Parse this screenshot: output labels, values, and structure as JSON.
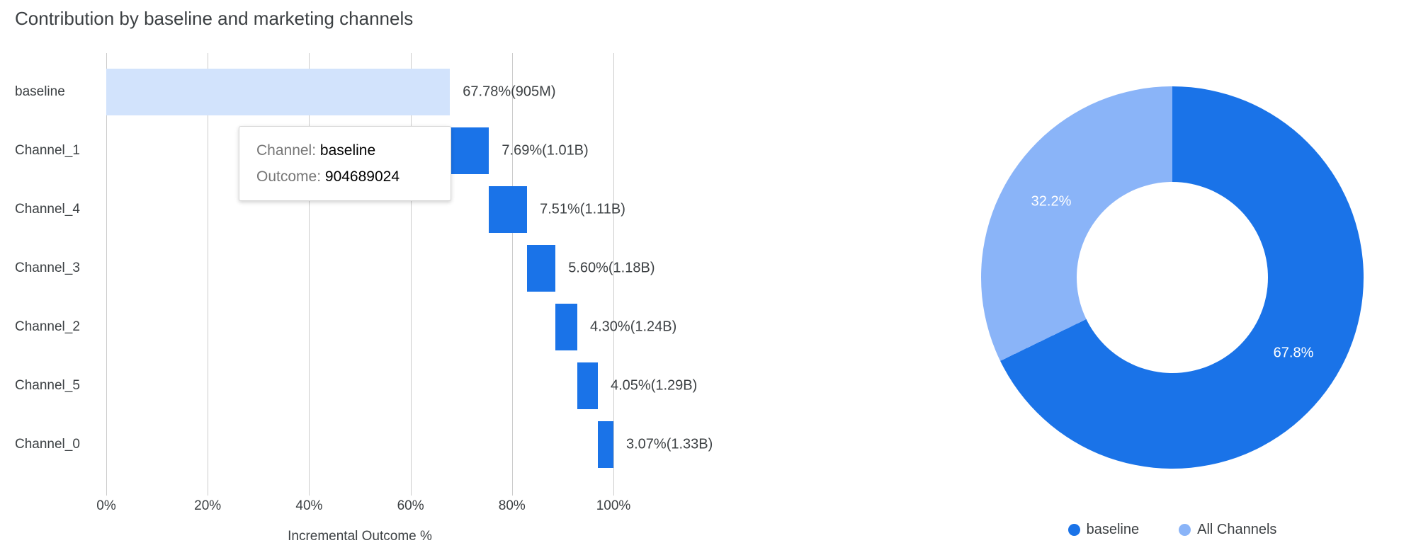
{
  "page": {
    "title": "Contribution by baseline and marketing channels"
  },
  "tooltip": {
    "rows": [
      {
        "label": "Channel:",
        "value": "baseline"
      },
      {
        "label": "Outcome:",
        "value": "904689024"
      }
    ]
  },
  "colors": {
    "channel_blue": "#1A73E8",
    "baseline_light_blue": "#D2E3FC",
    "all_channels_blue": "#8AB4F8",
    "text_dark": "#3C4043",
    "tooltip_label_gray": "#767676",
    "gridline": "#CCCCCC"
  },
  "chart_data": [
    {
      "type": "bar",
      "orientation": "horizontal",
      "style": "waterfall",
      "title": "Contribution by baseline and marketing channels",
      "xlabel": "Incremental Outcome %",
      "xlim": [
        0,
        100
      ],
      "grid": true,
      "x_ticks": [
        0,
        20,
        40,
        60,
        80,
        100
      ],
      "x_tick_labels": [
        "0%",
        "20%",
        "40%",
        "60%",
        "80%",
        "100%"
      ],
      "bars": [
        {
          "category": "baseline",
          "start": 0,
          "value": 67.78,
          "end": 67.78,
          "label": "67.78%(905M)",
          "color": "#D2E3FC"
        },
        {
          "category": "Channel_1",
          "start": 67.78,
          "value": 7.69,
          "end": 75.47,
          "label": "7.69%(1.01B)",
          "color": "#1A73E8"
        },
        {
          "category": "Channel_4",
          "start": 75.47,
          "value": 7.51,
          "end": 82.98,
          "label": "7.51%(1.11B)",
          "color": "#1A73E8"
        },
        {
          "category": "Channel_3",
          "start": 82.98,
          "value": 5.6,
          "end": 88.58,
          "label": "5.60%(1.18B)",
          "color": "#1A73E8"
        },
        {
          "category": "Channel_2",
          "start": 88.58,
          "value": 4.3,
          "end": 92.88,
          "label": "4.30%(1.24B)",
          "color": "#1A73E8"
        },
        {
          "category": "Channel_5",
          "start": 92.88,
          "value": 4.05,
          "end": 96.93,
          "label": "4.05%(1.29B)",
          "color": "#1A73E8"
        },
        {
          "category": "Channel_0",
          "start": 96.93,
          "value": 3.07,
          "end": 100.0,
          "label": "3.07%(1.33B)",
          "color": "#1A73E8"
        }
      ]
    },
    {
      "type": "pie",
      "style": "donut",
      "hole_ratio": 0.5,
      "legend_position": "bottom",
      "slices": [
        {
          "label": "baseline",
          "value": 67.8,
          "display": "67.8%",
          "color": "#1A73E8"
        },
        {
          "label": "All Channels",
          "value": 32.2,
          "display": "32.2%",
          "color": "#8AB4F8"
        }
      ]
    }
  ]
}
